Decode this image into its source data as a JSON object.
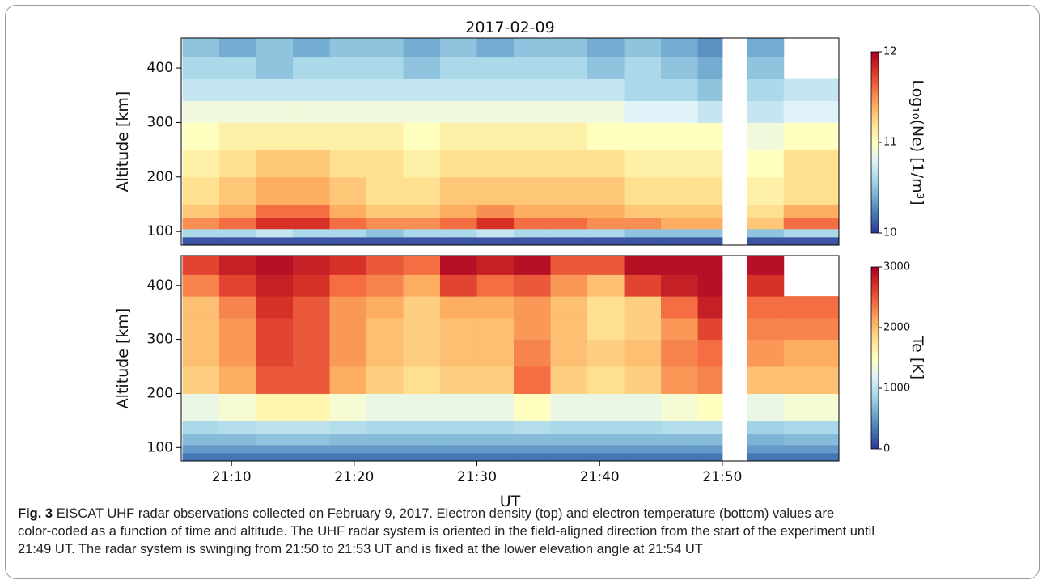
{
  "chart_data": [
    {
      "type": "heatmap",
      "title": "2017-02-09",
      "y_label": "Altitude [km]",
      "x_edges": [
        6,
        9,
        12,
        15,
        18,
        21,
        24,
        27,
        30,
        33,
        36,
        39,
        42,
        45,
        48,
        50,
        52,
        55,
        59.5
      ],
      "y_edges": [
        75,
        90,
        105,
        125,
        150,
        200,
        250,
        300,
        340,
        380,
        420,
        455
      ],
      "xlim": [
        5.9,
        59.5
      ],
      "ylim": [
        75,
        455
      ],
      "yticks": [
        100,
        200,
        300,
        400
      ],
      "colormap": "RdYlBu_r",
      "colorbar": {
        "label": "Log₁₀(Ne) [1/m³]",
        "lim": [
          10,
          12
        ],
        "ticks": [
          10,
          11,
          12
        ]
      },
      "values": [
        [
          10.1,
          10.1,
          10.1,
          10.1,
          10.1,
          10.1,
          10.1,
          10.1,
          10.1,
          10.1,
          10.1,
          10.1,
          10.1,
          10.1,
          10.1,
          null,
          10.1,
          10.1
        ],
        [
          10.6,
          10.6,
          10.7,
          10.6,
          10.6,
          10.5,
          10.6,
          10.6,
          10.7,
          10.6,
          10.6,
          10.6,
          10.5,
          10.5,
          10.5,
          null,
          10.5,
          10.6
        ],
        [
          11.5,
          11.6,
          11.8,
          11.8,
          11.6,
          11.5,
          11.5,
          11.6,
          11.8,
          11.6,
          11.6,
          11.5,
          11.5,
          11.4,
          11.4,
          null,
          11.3,
          11.6
        ],
        [
          11.3,
          11.4,
          11.6,
          11.6,
          11.4,
          11.3,
          11.3,
          11.4,
          11.5,
          11.4,
          11.4,
          11.4,
          11.3,
          11.3,
          11.3,
          null,
          11.2,
          11.4
        ],
        [
          11.2,
          11.3,
          11.4,
          11.4,
          11.3,
          11.2,
          11.2,
          11.3,
          11.3,
          11.3,
          11.3,
          11.3,
          11.2,
          11.2,
          11.2,
          null,
          11.1,
          11.2
        ],
        [
          11.1,
          11.2,
          11.3,
          11.3,
          11.2,
          11.2,
          11.1,
          11.2,
          11.2,
          11.2,
          11.2,
          11.2,
          11.1,
          11.1,
          11.1,
          null,
          11.0,
          11.2
        ],
        [
          11.0,
          11.1,
          11.1,
          11.1,
          11.1,
          11.1,
          11.0,
          11.1,
          11.1,
          11.1,
          11.1,
          11.0,
          11.0,
          11.0,
          11.0,
          null,
          10.9,
          11.0
        ],
        [
          10.9,
          10.9,
          10.9,
          10.9,
          10.9,
          10.9,
          10.9,
          10.9,
          10.9,
          10.9,
          10.9,
          10.9,
          10.8,
          10.8,
          10.7,
          null,
          10.7,
          10.8
        ],
        [
          10.7,
          10.7,
          10.7,
          10.7,
          10.7,
          10.7,
          10.7,
          10.7,
          10.7,
          10.7,
          10.7,
          10.7,
          10.6,
          10.6,
          10.5,
          null,
          10.6,
          10.7
        ],
        [
          10.6,
          10.6,
          10.5,
          10.6,
          10.6,
          10.6,
          10.5,
          10.6,
          10.6,
          10.6,
          10.6,
          10.5,
          10.6,
          10.5,
          10.4,
          null,
          10.5,
          null
        ],
        [
          10.5,
          10.4,
          10.5,
          10.4,
          10.5,
          10.5,
          10.4,
          10.5,
          10.4,
          10.5,
          10.5,
          10.4,
          10.5,
          10.4,
          10.3,
          null,
          10.4,
          null
        ]
      ]
    },
    {
      "type": "heatmap",
      "y_label": "Altitude [km]",
      "x_label": "UT",
      "x_edges": [
        6,
        9,
        12,
        15,
        18,
        21,
        24,
        27,
        30,
        33,
        36,
        39,
        42,
        45,
        48,
        50,
        52,
        55,
        59.5
      ],
      "y_edges": [
        75,
        90,
        105,
        125,
        150,
        200,
        250,
        300,
        340,
        380,
        420,
        455
      ],
      "xlim": [
        5.9,
        59.5
      ],
      "ylim": [
        75,
        455
      ],
      "yticks": [
        100,
        200,
        300,
        400
      ],
      "xticks": [
        {
          "value": 10,
          "label": "21:10"
        },
        {
          "value": 20,
          "label": "21:20"
        },
        {
          "value": 30,
          "label": "21:30"
        },
        {
          "value": 40,
          "label": "21:40"
        },
        {
          "value": 50,
          "label": "21:50"
        }
      ],
      "colormap": "RdYlBu_r",
      "colorbar": {
        "label": "Te [K]",
        "lim": [
          0,
          3000
        ],
        "ticks": [
          0,
          1000,
          2000,
          3000
        ]
      },
      "values": [
        [
          300,
          300,
          300,
          300,
          300,
          300,
          300,
          300,
          300,
          300,
          300,
          300,
          300,
          300,
          300,
          null,
          300,
          300
        ],
        [
          500,
          500,
          500,
          500,
          500,
          500,
          500,
          500,
          500,
          500,
          500,
          500,
          500,
          500,
          500,
          null,
          500,
          500
        ],
        [
          700,
          700,
          750,
          750,
          700,
          700,
          700,
          700,
          700,
          700,
          700,
          700,
          700,
          700,
          700,
          null,
          650,
          700
        ],
        [
          900,
          950,
          1000,
          1000,
          950,
          900,
          900,
          900,
          900,
          950,
          900,
          900,
          900,
          950,
          950,
          null,
          850,
          900
        ],
        [
          1300,
          1400,
          1600,
          1600,
          1400,
          1300,
          1300,
          1300,
          1300,
          1500,
          1300,
          1300,
          1300,
          1400,
          1500,
          null,
          1300,
          1400
        ],
        [
          1900,
          2100,
          2500,
          2500,
          2100,
          1900,
          1800,
          1900,
          1900,
          2400,
          1900,
          1800,
          1900,
          2200,
          2300,
          null,
          2000,
          2000
        ],
        [
          2000,
          2200,
          2600,
          2500,
          2200,
          2000,
          1900,
          2000,
          2000,
          2300,
          2000,
          1900,
          2000,
          2300,
          2400,
          null,
          2200,
          2100
        ],
        [
          2000,
          2200,
          2600,
          2500,
          2200,
          2000,
          1900,
          2000,
          2000,
          2200,
          2000,
          1800,
          1900,
          2200,
          2600,
          null,
          2300,
          2300
        ],
        [
          2000,
          2300,
          2700,
          2500,
          2200,
          2100,
          1900,
          2100,
          2100,
          2200,
          2000,
          1800,
          1900,
          2400,
          2800,
          null,
          2400,
          2400
        ],
        [
          2300,
          2600,
          2800,
          2700,
          2400,
          2300,
          2100,
          2600,
          2400,
          2500,
          2200,
          2000,
          2600,
          2800,
          2900,
          null,
          2700,
          null
        ],
        [
          2600,
          2800,
          2900,
          2800,
          2700,
          2500,
          2400,
          2900,
          2800,
          2900,
          2500,
          2500,
          2900,
          2900,
          2900,
          null,
          2900,
          null
        ]
      ]
    }
  ],
  "caption": {
    "label": "Fig. 3",
    "lines": [
      "EISCAT UHF radar observations collected on February 9, 2017. Electron density (top) and electron temperature (bottom) values are",
      "color-coded as a function of time and altitude. The UHF radar system is oriented in the field-aligned direction from the start of the experiment until",
      "21:49 UT. The radar system is swinging from 21:50 to 21:53 UT and is fixed at the lower elevation angle at 21:54 UT"
    ]
  }
}
